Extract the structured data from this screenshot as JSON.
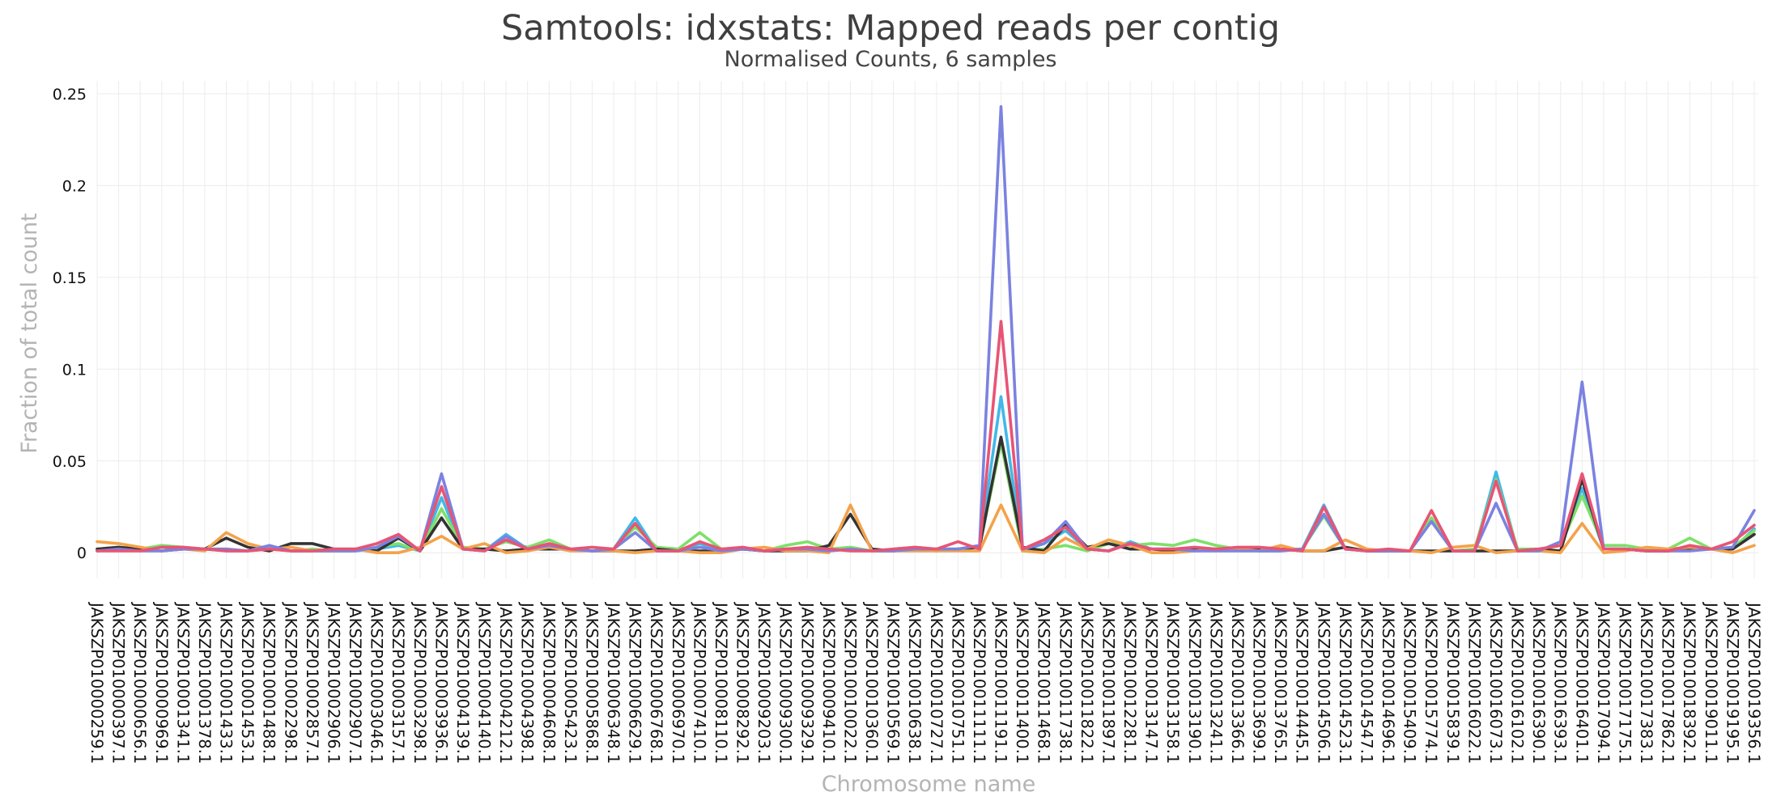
{
  "chart_data": {
    "type": "line",
    "title": "Samtools: idxstats: Mapped reads per contig",
    "subtitle": "Normalised Counts, 6 samples",
    "xlabel": "Chromosome name",
    "ylabel": "Fraction of total count",
    "ylim": [
      -0.014,
      0.257
    ],
    "yticks": [
      0,
      0.05,
      0.1,
      0.15,
      0.2,
      0.25
    ],
    "ytick_labels": [
      "0",
      "0.05",
      "0.1",
      "0.15",
      "0.2",
      "0.25"
    ],
    "grid": true,
    "categories": [
      "JAKSZP010000259.1",
      "JAKSZP010000397.1",
      "JAKSZP010000656.1",
      "JAKSZP010000969.1",
      "JAKSZP010001341.1",
      "JAKSZP010001378.1",
      "JAKSZP010001433.1",
      "JAKSZP010001453.1",
      "JAKSZP010001488.1",
      "JAKSZP010002298.1",
      "JAKSZP010002857.1",
      "JAKSZP010002906.1",
      "JAKSZP010002907.1",
      "JAKSZP010003046.1",
      "JAKSZP010003157.1",
      "JAKSZP010003298.1",
      "JAKSZP010003936.1",
      "JAKSZP010004139.1",
      "JAKSZP010004140.1",
      "JAKSZP010004212.1",
      "JAKSZP010004398.1",
      "JAKSZP010004608.1",
      "JAKSZP010005423.1",
      "JAKSZP010005868.1",
      "JAKSZP010006348.1",
      "JAKSZP010006629.1",
      "JAKSZP010006768.1",
      "JAKSZP010006970.1",
      "JAKSZP010007410.1",
      "JAKSZP010008110.1",
      "JAKSZP010008292.1",
      "JAKSZP010009203.1",
      "JAKSZP010009300.1",
      "JAKSZP010009329.1",
      "JAKSZP010009410.1",
      "JAKSZP010010022.1",
      "JAKSZP010010360.1",
      "JAKSZP010010569.1",
      "JAKSZP010010638.1",
      "JAKSZP010010727.1",
      "JAKSZP010010751.1",
      "JAKSZP010011111.1",
      "JAKSZP010011191.1",
      "JAKSZP010011400.1",
      "JAKSZP010011468.1",
      "JAKSZP010011738.1",
      "JAKSZP010011822.1",
      "JAKSZP010011897.1",
      "JAKSZP010012281.1",
      "JAKSZP010013147.1",
      "JAKSZP010013158.1",
      "JAKSZP010013190.1",
      "JAKSZP010013241.1",
      "JAKSZP010013366.1",
      "JAKSZP010013699.1",
      "JAKSZP010013765.1",
      "JAKSZP010014445.1",
      "JAKSZP010014506.1",
      "JAKSZP010014523.1",
      "JAKSZP010014547.1",
      "JAKSZP010014696.1",
      "JAKSZP010015409.1",
      "JAKSZP010015774.1",
      "JAKSZP010015839.1",
      "JAKSZP010016022.1",
      "JAKSZP010016073.1",
      "JAKSZP010016102.1",
      "JAKSZP010016390.1",
      "JAKSZP010016393.1",
      "JAKSZP010016401.1",
      "JAKSZP010017094.1",
      "JAKSZP010017175.1",
      "JAKSZP010017383.1",
      "JAKSZP010017862.1",
      "JAKSZP010018392.1",
      "JAKSZP010019011.1",
      "JAKSZP010019195.1",
      "JAKSZP010019356.1"
    ],
    "series": [
      {
        "color": "#41b8e8",
        "values": [
          0.001,
          0.002,
          0.002,
          0.003,
          0.002,
          0.002,
          0.001,
          0.001,
          0.003,
          0.001,
          0.001,
          0.001,
          0.001,
          0.002,
          0.004,
          0.001,
          0.03,
          0.002,
          0.001,
          0.01,
          0.002,
          0.004,
          0.002,
          0.001,
          0.002,
          0.019,
          0.001,
          0.001,
          0.005,
          0.001,
          0.002,
          0.001,
          0.002,
          0.002,
          0.001,
          0.002,
          0.001,
          0.001,
          0.002,
          0.002,
          0.002,
          0.003,
          0.085,
          0.001,
          0.005,
          0.012,
          0.002,
          0.001,
          0.006,
          0.002,
          0.002,
          0.002,
          0.002,
          0.002,
          0.001,
          0.001,
          0.002,
          0.026,
          0.002,
          0.001,
          0.001,
          0.001,
          0.018,
          0.001,
          0.001,
          0.044,
          0.001,
          0.001,
          0.006,
          0.035,
          0.002,
          0.002,
          0.001,
          0.001,
          0.002,
          0.002,
          0.002,
          0.013
        ]
      },
      {
        "color": "#7ee06a",
        "values": [
          0.002,
          0.003,
          0.002,
          0.004,
          0.003,
          0.002,
          0.002,
          0.001,
          0.002,
          0.001,
          0.002,
          0.001,
          0.001,
          0.003,
          0.005,
          0.001,
          0.024,
          0.003,
          0.002,
          0.006,
          0.003,
          0.007,
          0.002,
          0.001,
          0.002,
          0.014,
          0.003,
          0.002,
          0.011,
          0.002,
          0.002,
          0.001,
          0.004,
          0.006,
          0.002,
          0.003,
          0.001,
          0.002,
          0.003,
          0.002,
          0.002,
          0.003,
          0.06,
          0.001,
          0.002,
          0.004,
          0.001,
          0.005,
          0.004,
          0.005,
          0.004,
          0.007,
          0.004,
          0.002,
          0.002,
          0.002,
          0.002,
          0.02,
          0.002,
          0.001,
          0.002,
          0.001,
          0.019,
          0.001,
          0.002,
          0.04,
          0.002,
          0.002,
          0.004,
          0.031,
          0.004,
          0.004,
          0.002,
          0.002,
          0.008,
          0.002,
          0.003,
          0.012
        ]
      },
      {
        "color": "#333333",
        "values": [
          0.002,
          0.003,
          0.002,
          0.001,
          0.002,
          0.002,
          0.008,
          0.003,
          0.001,
          0.005,
          0.005,
          0.002,
          0.002,
          0.001,
          0.008,
          0.001,
          0.019,
          0.002,
          0.002,
          0.001,
          0.002,
          0.002,
          0.002,
          0.001,
          0.001,
          0.001,
          0.002,
          0.001,
          0.001,
          0.001,
          0.002,
          0.001,
          0.001,
          0.001,
          0.004,
          0.021,
          0.002,
          0.001,
          0.002,
          0.001,
          0.002,
          0.003,
          0.063,
          0.003,
          0.001,
          0.015,
          0.003,
          0.005,
          0.002,
          0.002,
          0.001,
          0.002,
          0.002,
          0.002,
          0.002,
          0.002,
          0.001,
          0.001,
          0.003,
          0.001,
          0.001,
          0.001,
          0.001,
          0.001,
          0.001,
          0.001,
          0.001,
          0.002,
          0.001,
          0.04,
          0.002,
          0.002,
          0.001,
          0.001,
          0.002,
          0.002,
          0.002,
          0.01
        ]
      },
      {
        "color": "#f4a24a",
        "values": [
          0.006,
          0.005,
          0.003,
          0.001,
          0.002,
          0.001,
          0.011,
          0.005,
          0.002,
          0.003,
          0.001,
          0.001,
          0.002,
          0.0,
          0.0,
          0.003,
          0.009,
          0.002,
          0.005,
          0.0,
          0.001,
          0.003,
          0.001,
          0.001,
          0.001,
          0.0,
          0.001,
          0.001,
          0.0,
          0.0,
          0.002,
          0.003,
          0.001,
          0.001,
          0.0,
          0.026,
          0.001,
          0.001,
          0.001,
          0.001,
          0.001,
          0.001,
          0.026,
          0.001,
          0.0,
          0.008,
          0.002,
          0.007,
          0.004,
          0.0,
          0.0,
          0.001,
          0.002,
          0.002,
          0.001,
          0.004,
          0.001,
          0.001,
          0.007,
          0.002,
          0.001,
          0.001,
          0.0,
          0.003,
          0.004,
          0.0,
          0.001,
          0.001,
          0.0,
          0.016,
          0.0,
          0.001,
          0.003,
          0.002,
          0.003,
          0.002,
          0.0,
          0.004
        ]
      },
      {
        "color": "#7b82e0",
        "values": [
          0.001,
          0.002,
          0.001,
          0.001,
          0.002,
          0.002,
          0.002,
          0.001,
          0.004,
          0.001,
          0.001,
          0.001,
          0.001,
          0.003,
          0.009,
          0.001,
          0.043,
          0.002,
          0.001,
          0.009,
          0.002,
          0.004,
          0.002,
          0.001,
          0.002,
          0.011,
          0.001,
          0.001,
          0.003,
          0.001,
          0.002,
          0.001,
          0.002,
          0.002,
          0.001,
          0.002,
          0.001,
          0.001,
          0.002,
          0.002,
          0.002,
          0.004,
          0.243,
          0.002,
          0.005,
          0.017,
          0.002,
          0.001,
          0.005,
          0.002,
          0.002,
          0.001,
          0.001,
          0.001,
          0.001,
          0.001,
          0.002,
          0.021,
          0.002,
          0.001,
          0.001,
          0.001,
          0.017,
          0.001,
          0.001,
          0.027,
          0.001,
          0.001,
          0.006,
          0.093,
          0.002,
          0.002,
          0.001,
          0.001,
          0.001,
          0.002,
          0.003,
          0.023
        ]
      },
      {
        "color": "#e85474",
        "values": [
          0.001,
          0.001,
          0.001,
          0.003,
          0.003,
          0.002,
          0.001,
          0.001,
          0.002,
          0.001,
          0.001,
          0.002,
          0.002,
          0.005,
          0.01,
          0.001,
          0.036,
          0.002,
          0.001,
          0.007,
          0.002,
          0.005,
          0.002,
          0.003,
          0.002,
          0.016,
          0.001,
          0.001,
          0.006,
          0.002,
          0.003,
          0.001,
          0.002,
          0.003,
          0.002,
          0.001,
          0.001,
          0.002,
          0.003,
          0.002,
          0.006,
          0.002,
          0.126,
          0.002,
          0.007,
          0.014,
          0.002,
          0.001,
          0.005,
          0.002,
          0.002,
          0.003,
          0.002,
          0.003,
          0.003,
          0.002,
          0.001,
          0.025,
          0.002,
          0.001,
          0.002,
          0.001,
          0.023,
          0.001,
          0.001,
          0.039,
          0.001,
          0.002,
          0.004,
          0.043,
          0.002,
          0.002,
          0.001,
          0.001,
          0.004,
          0.002,
          0.006,
          0.015
        ]
      }
    ]
  }
}
